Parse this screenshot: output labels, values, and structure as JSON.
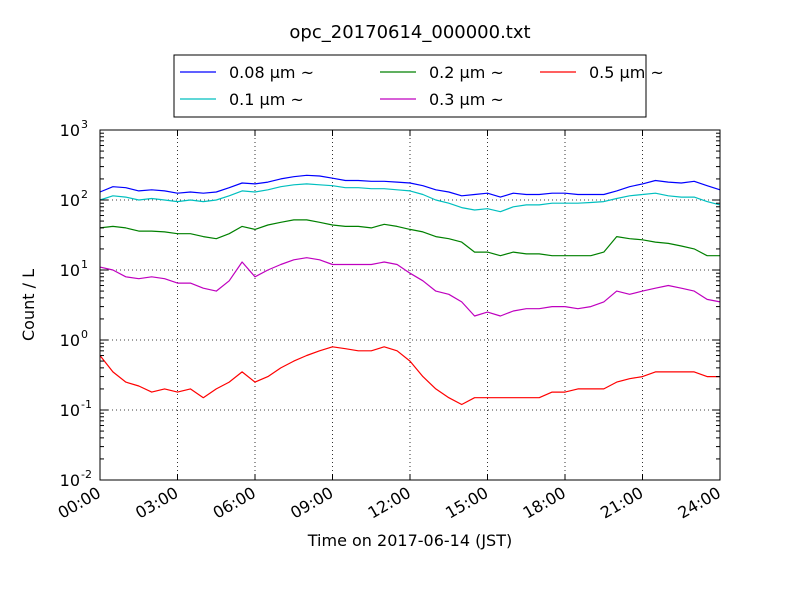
{
  "chart_data": {
    "type": "line",
    "title": "opc_20170614_000000.txt",
    "xlabel": "Time on 2017-06-14 (JST)",
    "ylabel": "Count / L",
    "x_unit": "hours",
    "xlim": [
      0,
      24
    ],
    "ylim": [
      0.01,
      1000
    ],
    "y_scale": "log",
    "grid": true,
    "legend_position": "top-center",
    "x_tick_values": [
      0,
      3,
      6,
      9,
      12,
      15,
      18,
      21,
      24
    ],
    "x_ticks": [
      "00:00",
      "03:00",
      "06:00",
      "09:00",
      "12:00",
      "15:00",
      "18:00",
      "21:00",
      "24:00"
    ],
    "y_tick_values": [
      0.01,
      0.1,
      1,
      10,
      100,
      1000
    ],
    "y_ticks": [
      {
        "base": "10",
        "exp": "-2"
      },
      {
        "base": "10",
        "exp": "-1"
      },
      {
        "base": "10",
        "exp": "0"
      },
      {
        "base": "10",
        "exp": "1"
      },
      {
        "base": "10",
        "exp": "2"
      },
      {
        "base": "10",
        "exp": "3"
      }
    ],
    "series": [
      {
        "name": "0.08 μm ~",
        "color": "#0000ff",
        "x": [
          0,
          0.5,
          1,
          1.5,
          2,
          2.5,
          3,
          3.5,
          4,
          4.5,
          5,
          5.5,
          6,
          6.5,
          7,
          7.5,
          8,
          8.5,
          9,
          9.5,
          10,
          10.5,
          11,
          11.5,
          12,
          12.5,
          13,
          13.5,
          14,
          14.5,
          15,
          15.5,
          16,
          16.5,
          17,
          17.5,
          18,
          18.5,
          19,
          19.5,
          20,
          20.5,
          21,
          21.5,
          22,
          22.5,
          23,
          23.5,
          24
        ],
        "y": [
          130,
          155,
          150,
          135,
          140,
          135,
          125,
          130,
          125,
          130,
          150,
          175,
          170,
          180,
          200,
          215,
          225,
          220,
          205,
          190,
          190,
          185,
          185,
          180,
          175,
          160,
          140,
          130,
          115,
          120,
          125,
          110,
          125,
          120,
          120,
          125,
          125,
          120,
          120,
          120,
          135,
          155,
          170,
          190,
          180,
          175,
          185,
          160,
          140
        ]
      },
      {
        "name": "0.1 μm ~",
        "color": "#00bfbf",
        "x": [
          0,
          0.5,
          1,
          1.5,
          2,
          2.5,
          3,
          3.5,
          4,
          4.5,
          5,
          5.5,
          6,
          6.5,
          7,
          7.5,
          8,
          8.5,
          9,
          9.5,
          10,
          10.5,
          11,
          11.5,
          12,
          12.5,
          13,
          13.5,
          14,
          14.5,
          15,
          15.5,
          16,
          16.5,
          17,
          17.5,
          18,
          18.5,
          19,
          19.5,
          20,
          20.5,
          21,
          21.5,
          22,
          22.5,
          23,
          23.5,
          24
        ],
        "y": [
          100,
          115,
          110,
          100,
          105,
          100,
          95,
          100,
          95,
          100,
          115,
          135,
          130,
          140,
          155,
          165,
          170,
          165,
          160,
          150,
          150,
          145,
          145,
          140,
          135,
          120,
          100,
          90,
          78,
          72,
          75,
          68,
          80,
          85,
          85,
          90,
          90,
          90,
          92,
          95,
          105,
          115,
          120,
          125,
          115,
          110,
          110,
          95,
          85
        ]
      },
      {
        "name": "0.2 μm ~",
        "color": "#008000",
        "x": [
          0,
          0.5,
          1,
          1.5,
          2,
          2.5,
          3,
          3.5,
          4,
          4.5,
          5,
          5.5,
          6,
          6.5,
          7,
          7.5,
          8,
          8.5,
          9,
          9.5,
          10,
          10.5,
          11,
          11.5,
          12,
          12.5,
          13,
          13.5,
          14,
          14.5,
          15,
          15.5,
          16,
          16.5,
          17,
          17.5,
          18,
          18.5,
          19,
          19.5,
          20,
          20.5,
          21,
          21.5,
          22,
          22.5,
          23,
          23.5,
          24
        ],
        "y": [
          40,
          42,
          40,
          36,
          36,
          35,
          33,
          33,
          30,
          28,
          33,
          42,
          38,
          44,
          48,
          52,
          52,
          48,
          44,
          42,
          42,
          40,
          45,
          42,
          38,
          35,
          30,
          28,
          25,
          18,
          18,
          16,
          18,
          17,
          17,
          16,
          16,
          16,
          16,
          18,
          30,
          28,
          27,
          25,
          24,
          22,
          20,
          16,
          16
        ]
      },
      {
        "name": "0.3 μm ~",
        "color": "#bf00bf",
        "x": [
          0,
          0.5,
          1,
          1.5,
          2,
          2.5,
          3,
          3.5,
          4,
          4.5,
          5,
          5.5,
          6,
          6.5,
          7,
          7.5,
          8,
          8.5,
          9,
          9.5,
          10,
          10.5,
          11,
          11.5,
          12,
          12.5,
          13,
          13.5,
          14,
          14.5,
          15,
          15.5,
          16,
          16.5,
          17,
          17.5,
          18,
          18.5,
          19,
          19.5,
          20,
          20.5,
          21,
          21.5,
          22,
          22.5,
          23,
          23.5,
          24
        ],
        "y": [
          11,
          10,
          8,
          7.5,
          8,
          7.5,
          6.5,
          6.5,
          5.5,
          5,
          7,
          13,
          8,
          10,
          12,
          14,
          15,
          14,
          12,
          12,
          12,
          12,
          13,
          12,
          9,
          7,
          5,
          4.5,
          3.5,
          2.2,
          2.5,
          2.2,
          2.6,
          2.8,
          2.8,
          3,
          3,
          2.8,
          3,
          3.5,
          5,
          4.5,
          5,
          5.5,
          6,
          5.5,
          5,
          3.8,
          3.5
        ]
      },
      {
        "name": "0.5 μm ~",
        "color": "#ff0000",
        "x": [
          0,
          0.5,
          1,
          1.5,
          2,
          2.5,
          3,
          3.5,
          4,
          4.5,
          5,
          5.5,
          6,
          6.5,
          7,
          7.5,
          8,
          8.5,
          9,
          9.5,
          10,
          10.5,
          11,
          11.5,
          12,
          12.5,
          13,
          13.5,
          14,
          14.5,
          15,
          15.5,
          16,
          16.5,
          17,
          17.5,
          18,
          18.5,
          19,
          19.5,
          20,
          20.5,
          21,
          21.5,
          22,
          22.5,
          23,
          23.5,
          24
        ],
        "y": [
          0.6,
          0.35,
          0.25,
          0.22,
          0.18,
          0.2,
          0.18,
          0.2,
          0.15,
          0.2,
          0.25,
          0.35,
          0.25,
          0.3,
          0.4,
          0.5,
          0.6,
          0.7,
          0.8,
          0.75,
          0.7,
          0.7,
          0.8,
          0.7,
          0.5,
          0.3,
          0.2,
          0.15,
          0.12,
          0.15,
          0.15,
          0.15,
          0.15,
          0.15,
          0.15,
          0.18,
          0.18,
          0.2,
          0.2,
          0.2,
          0.25,
          0.28,
          0.3,
          0.35,
          0.35,
          0.35,
          0.35,
          0.3,
          0.3
        ]
      }
    ]
  }
}
